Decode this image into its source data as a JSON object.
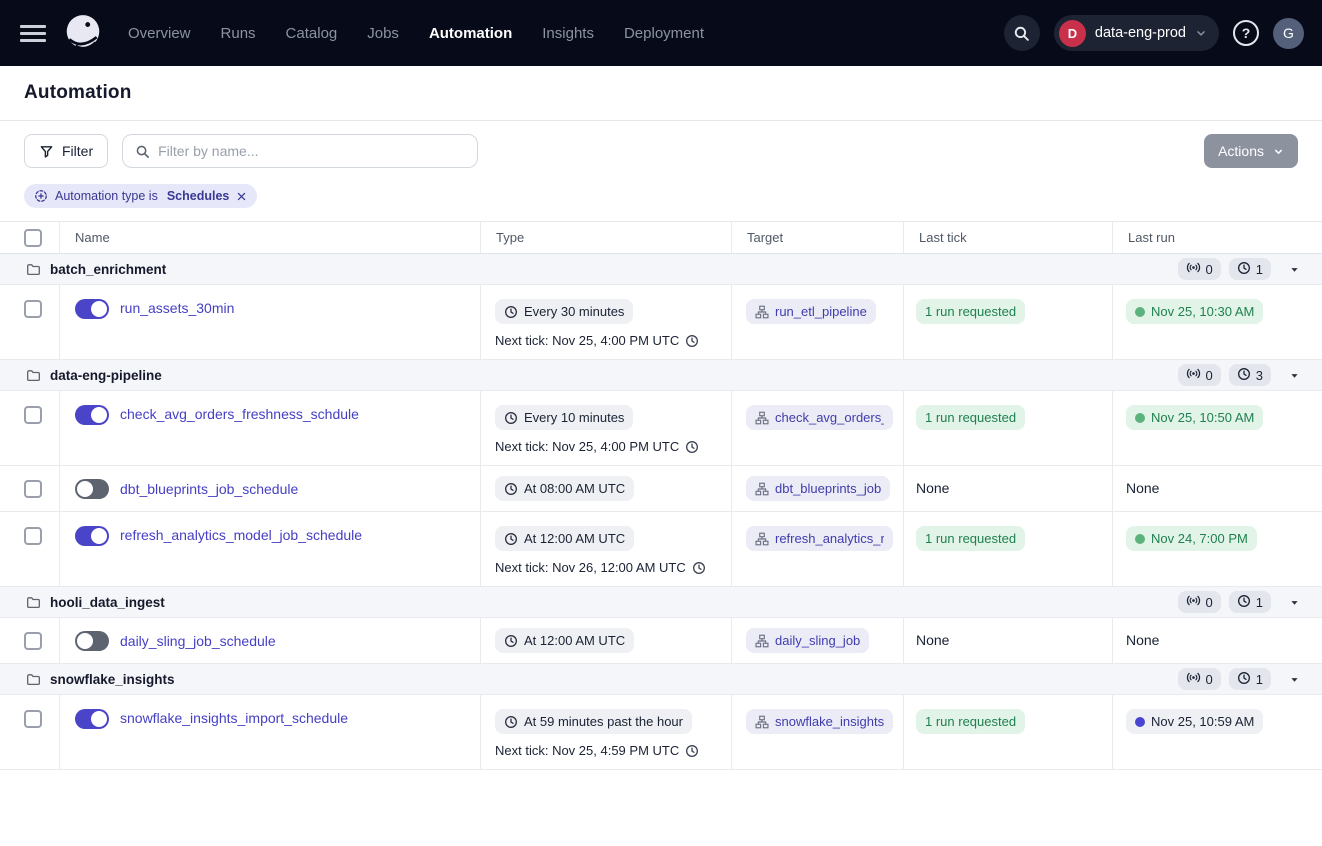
{
  "colors": {
    "nav_bg": "#070a19",
    "accent_indigo": "#4a44c9",
    "link_indigo": "#453fc4",
    "green_text": "#1f8150",
    "green_bg": "#e2f3e7",
    "green_dot": "#5cb27d",
    "in_progress_dot": "#4a45d1",
    "workspace_badge_red": "#c9314b",
    "chip_gray_bg": "#eef0f3",
    "filter_chip_bg": "#e6e7f8",
    "filter_chip_text": "#3a3894"
  },
  "nav": {
    "items": [
      {
        "label": "Overview",
        "active": false
      },
      {
        "label": "Runs",
        "active": false
      },
      {
        "label": "Catalog",
        "active": false
      },
      {
        "label": "Jobs",
        "active": false
      },
      {
        "label": "Automation",
        "active": true
      },
      {
        "label": "Insights",
        "active": false
      },
      {
        "label": "Deployment",
        "active": false
      }
    ],
    "workspace": {
      "initial": "D",
      "name": "data-eng-prod"
    },
    "help_label": "?",
    "user_initial": "G"
  },
  "page": {
    "title": "Automation"
  },
  "toolbar": {
    "filter_label": "Filter",
    "search_placeholder": "Filter by name...",
    "actions_label": "Actions"
  },
  "filter_chip": {
    "prefix": "Automation type is",
    "value": "Schedules"
  },
  "table": {
    "columns": [
      "Name",
      "Type",
      "Target",
      "Last tick",
      "Last run"
    ],
    "none_label": "None",
    "groups": [
      {
        "name": "batch_enrichment",
        "sensor_count": "0",
        "schedule_count": "1",
        "rows": [
          {
            "name": "run_assets_30min",
            "enabled": true,
            "type": "Every 30 minutes",
            "next_tick": "Next tick: Nov 25, 4:00 PM UTC",
            "target": "run_etl_pipeline",
            "last_tick": "1 run requested",
            "last_run": {
              "text": "Nov 25, 10:30 AM",
              "status": "success"
            }
          }
        ]
      },
      {
        "name": "data-eng-pipeline",
        "sensor_count": "0",
        "schedule_count": "3",
        "rows": [
          {
            "name": "check_avg_orders_freshness_schdule",
            "enabled": true,
            "type": "Every 10 minutes",
            "next_tick": "Next tick: Nov 25, 4:00 PM UTC",
            "target": "check_avg_orders_",
            "last_tick": "1 run requested",
            "last_run": {
              "text": "Nov 25, 10:50 AM",
              "status": "success"
            }
          },
          {
            "name": "dbt_blueprints_job_schedule",
            "enabled": false,
            "type": "At 08:00 AM UTC",
            "next_tick": null,
            "target": "dbt_blueprints_job",
            "last_tick": null,
            "last_run": null
          },
          {
            "name": "refresh_analytics_model_job_schedule",
            "enabled": true,
            "type": "At 12:00 AM UTC",
            "next_tick": "Next tick: Nov 26, 12:00 AM UTC",
            "target": "refresh_analytics_r",
            "last_tick": "1 run requested",
            "last_run": {
              "text": "Nov 24, 7:00 PM",
              "status": "success"
            }
          }
        ]
      },
      {
        "name": "hooli_data_ingest",
        "sensor_count": "0",
        "schedule_count": "1",
        "rows": [
          {
            "name": "daily_sling_job_schedule",
            "enabled": false,
            "type": "At 12:00 AM UTC",
            "next_tick": null,
            "target": "daily_sling_job",
            "last_tick": null,
            "last_run": null
          }
        ]
      },
      {
        "name": "snowflake_insights",
        "sensor_count": "0",
        "schedule_count": "1",
        "rows": [
          {
            "name": "snowflake_insights_import_schedule",
            "enabled": true,
            "type": "At 59 minutes past the hour",
            "next_tick": "Next tick: Nov 25, 4:59 PM UTC",
            "target": "snowflake_insights",
            "last_tick": "1 run requested",
            "last_run": {
              "text": "Nov 25, 10:59 AM",
              "status": "in_progress"
            }
          }
        ]
      }
    ]
  }
}
